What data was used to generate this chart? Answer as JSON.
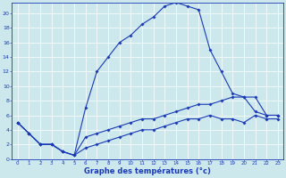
{
  "xlabel": "Graphe des températures (°c)",
  "background_color": "#cce8ec",
  "line_color": "#1a3ab5",
  "grid_color": "#ffffff",
  "x_ticks": [
    0,
    1,
    2,
    3,
    4,
    5,
    6,
    7,
    8,
    9,
    10,
    11,
    12,
    13,
    14,
    15,
    16,
    17,
    18,
    19,
    20,
    21,
    22,
    23
  ],
  "y_ticks": [
    0,
    2,
    4,
    6,
    8,
    10,
    12,
    14,
    16,
    18,
    20
  ],
  "ylim": [
    0,
    21.5
  ],
  "xlim": [
    -0.5,
    23.5
  ],
  "line1_x": [
    0,
    1,
    2,
    3,
    4,
    5,
    6,
    7,
    8,
    9,
    10,
    11,
    12,
    13,
    14,
    15,
    16,
    17,
    18,
    19,
    20,
    21,
    22,
    23
  ],
  "line1_y": [
    5.0,
    3.5,
    2.0,
    2.0,
    1.0,
    0.5,
    7.0,
    12.0,
    14.0,
    16.0,
    17.0,
    18.5,
    19.5,
    21.0,
    21.5,
    21.0,
    20.5,
    15.0,
    12.0,
    9.0,
    8.5,
    6.5,
    6.0,
    6.0
  ],
  "line2_x": [
    0,
    1,
    2,
    3,
    4,
    5,
    6,
    7,
    8,
    9,
    10,
    11,
    12,
    13,
    14,
    15,
    16,
    17,
    18,
    19,
    20,
    21,
    22,
    23
  ],
  "line2_y": [
    5.0,
    3.5,
    2.0,
    2.0,
    1.0,
    0.5,
    3.0,
    3.5,
    4.0,
    4.5,
    5.0,
    5.5,
    5.5,
    6.0,
    6.5,
    7.0,
    7.5,
    7.5,
    8.0,
    8.5,
    8.5,
    8.5,
    6.0,
    6.0
  ],
  "line3_x": [
    0,
    1,
    2,
    3,
    4,
    5,
    6,
    7,
    8,
    9,
    10,
    11,
    12,
    13,
    14,
    15,
    16,
    17,
    18,
    19,
    20,
    21,
    22,
    23
  ],
  "line3_y": [
    5.0,
    3.5,
    2.0,
    2.0,
    1.0,
    0.5,
    1.5,
    2.0,
    2.5,
    3.0,
    3.5,
    4.0,
    4.0,
    4.5,
    5.0,
    5.5,
    5.5,
    6.0,
    5.5,
    5.5,
    5.0,
    6.0,
    5.5,
    5.5
  ]
}
